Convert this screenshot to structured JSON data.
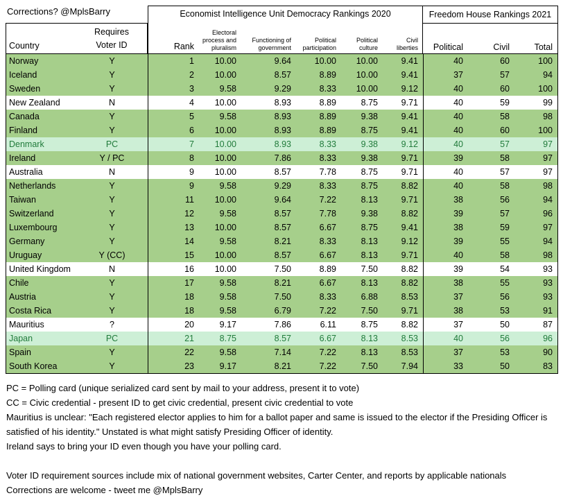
{
  "meta": {
    "corrections_note": "Corrections? @MplsBarry"
  },
  "colors": {
    "row_green": "#A6CF8B",
    "row_highlight_bg": "#CDEFD6",
    "row_highlight_text": "#217B3B",
    "row_white": "#FFFFFF",
    "border": "#000000"
  },
  "header": {
    "country_label": "Country",
    "voter_id_label": "Requires\nVoter ID",
    "eiu_title": "Economist Intelligence Unit Democracy Rankings 2020",
    "fh_title": "Freedom House Rankings 2021",
    "eiu_columns": [
      "Rank",
      "Electoral\nprocess and\npluralism",
      "Functioning of\ngovernment",
      "Political\nparticipation",
      "Political\nculture",
      "Civil\nliberties"
    ],
    "fh_columns": [
      "Political",
      "Civil",
      "Total"
    ]
  },
  "chart_data": {
    "type": "table",
    "title": "Economist Intelligence Unit Democracy Rankings 2020 / Freedom House Rankings 2021",
    "columns": [
      "Country",
      "Requires Voter ID",
      "Rank",
      "Electoral process and pluralism",
      "Functioning of government",
      "Political participation",
      "Political culture",
      "Civil liberties",
      "FH Political",
      "FH Civil",
      "FH Total"
    ],
    "row_style_legend": {
      "green": "requires voter ID",
      "white": "does not require voter ID / unclear",
      "good": "polling card highlighted row (green text on light green)"
    },
    "rows": [
      {
        "country": "Norway",
        "voter_id": "Y",
        "rank": "1",
        "electoral": "10.00",
        "functioning": "9.64",
        "participation": "10.00",
        "culture": "10.00",
        "liberties": "9.41",
        "fh_political": "40",
        "fh_civil": "60",
        "fh_total": "100",
        "style": "green"
      },
      {
        "country": "Iceland",
        "voter_id": "Y",
        "rank": "2",
        "electoral": "10.00",
        "functioning": "8.57",
        "participation": "8.89",
        "culture": "10.00",
        "liberties": "9.41",
        "fh_political": "37",
        "fh_civil": "57",
        "fh_total": "94",
        "style": "green"
      },
      {
        "country": "Sweden",
        "voter_id": "Y",
        "rank": "3",
        "electoral": "9.58",
        "functioning": "9.29",
        "participation": "8.33",
        "culture": "10.00",
        "liberties": "9.12",
        "fh_political": "40",
        "fh_civil": "60",
        "fh_total": "100",
        "style": "green"
      },
      {
        "country": "New Zealand",
        "voter_id": "N",
        "rank": "4",
        "electoral": "10.00",
        "functioning": "8.93",
        "participation": "8.89",
        "culture": "8.75",
        "liberties": "9.71",
        "fh_political": "40",
        "fh_civil": "59",
        "fh_total": "99",
        "style": "white"
      },
      {
        "country": "Canada",
        "voter_id": "Y",
        "rank": "5",
        "electoral": "9.58",
        "functioning": "8.93",
        "participation": "8.89",
        "culture": "9.38",
        "liberties": "9.41",
        "fh_political": "40",
        "fh_civil": "58",
        "fh_total": "98",
        "style": "green"
      },
      {
        "country": "Finland",
        "voter_id": "Y",
        "rank": "6",
        "electoral": "10.00",
        "functioning": "8.93",
        "participation": "8.89",
        "culture": "8.75",
        "liberties": "9.41",
        "fh_political": "40",
        "fh_civil": "60",
        "fh_total": "100",
        "style": "green"
      },
      {
        "country": "Denmark",
        "voter_id": "PC",
        "rank": "7",
        "electoral": "10.00",
        "functioning": "8.93",
        "participation": "8.33",
        "culture": "9.38",
        "liberties": "9.12",
        "fh_political": "40",
        "fh_civil": "57",
        "fh_total": "97",
        "style": "good"
      },
      {
        "country": "Ireland",
        "voter_id": "Y / PC",
        "rank": "8",
        "electoral": "10.00",
        "functioning": "7.86",
        "participation": "8.33",
        "culture": "9.38",
        "liberties": "9.71",
        "fh_political": "39",
        "fh_civil": "58",
        "fh_total": "97",
        "style": "green"
      },
      {
        "country": "Australia",
        "voter_id": "N",
        "rank": "9",
        "electoral": "10.00",
        "functioning": "8.57",
        "participation": "7.78",
        "culture": "8.75",
        "liberties": "9.71",
        "fh_political": "40",
        "fh_civil": "57",
        "fh_total": "97",
        "style": "white"
      },
      {
        "country": "Netherlands",
        "voter_id": "Y",
        "rank": "9",
        "electoral": "9.58",
        "functioning": "9.29",
        "participation": "8.33",
        "culture": "8.75",
        "liberties": "8.82",
        "fh_political": "40",
        "fh_civil": "58",
        "fh_total": "98",
        "style": "green"
      },
      {
        "country": "Taiwan",
        "voter_id": "Y",
        "rank": "11",
        "electoral": "10.00",
        "functioning": "9.64",
        "participation": "7.22",
        "culture": "8.13",
        "liberties": "9.71",
        "fh_political": "38",
        "fh_civil": "56",
        "fh_total": "94",
        "style": "green"
      },
      {
        "country": "Switzerland",
        "voter_id": "Y",
        "rank": "12",
        "electoral": "9.58",
        "functioning": "8.57",
        "participation": "7.78",
        "culture": "9.38",
        "liberties": "8.82",
        "fh_political": "39",
        "fh_civil": "57",
        "fh_total": "96",
        "style": "green"
      },
      {
        "country": "Luxembourg",
        "voter_id": "Y",
        "rank": "13",
        "electoral": "10.00",
        "functioning": "8.57",
        "participation": "6.67",
        "culture": "8.75",
        "liberties": "9.41",
        "fh_political": "38",
        "fh_civil": "59",
        "fh_total": "97",
        "style": "green"
      },
      {
        "country": "Germany",
        "voter_id": "Y",
        "rank": "14",
        "electoral": "9.58",
        "functioning": "8.21",
        "participation": "8.33",
        "culture": "8.13",
        "liberties": "9.12",
        "fh_political": "39",
        "fh_civil": "55",
        "fh_total": "94",
        "style": "green"
      },
      {
        "country": "Uruguay",
        "voter_id": "Y (CC)",
        "rank": "15",
        "electoral": "10.00",
        "functioning": "8.57",
        "participation": "6.67",
        "culture": "8.13",
        "liberties": "9.71",
        "fh_political": "40",
        "fh_civil": "58",
        "fh_total": "98",
        "style": "green"
      },
      {
        "country": "United Kingdom",
        "voter_id": "N",
        "rank": "16",
        "electoral": "10.00",
        "functioning": "7.50",
        "participation": "8.89",
        "culture": "7.50",
        "liberties": "8.82",
        "fh_political": "39",
        "fh_civil": "54",
        "fh_total": "93",
        "style": "white"
      },
      {
        "country": "Chile",
        "voter_id": "Y",
        "rank": "17",
        "electoral": "9.58",
        "functioning": "8.21",
        "participation": "6.67",
        "culture": "8.13",
        "liberties": "8.82",
        "fh_political": "38",
        "fh_civil": "55",
        "fh_total": "93",
        "style": "green"
      },
      {
        "country": "Austria",
        "voter_id": "Y",
        "rank": "18",
        "electoral": "9.58",
        "functioning": "7.50",
        "participation": "8.33",
        "culture": "6.88",
        "liberties": "8.53",
        "fh_political": "37",
        "fh_civil": "56",
        "fh_total": "93",
        "style": "green"
      },
      {
        "country": "Costa Rica",
        "voter_id": "Y",
        "rank": "18",
        "electoral": "9.58",
        "functioning": "6.79",
        "participation": "7.22",
        "culture": "7.50",
        "liberties": "9.71",
        "fh_political": "38",
        "fh_civil": "53",
        "fh_total": "91",
        "style": "green"
      },
      {
        "country": "Mauritius",
        "voter_id": "?",
        "rank": "20",
        "electoral": "9.17",
        "functioning": "7.86",
        "participation": "6.11",
        "culture": "8.75",
        "liberties": "8.82",
        "fh_political": "37",
        "fh_civil": "50",
        "fh_total": "87",
        "style": "white"
      },
      {
        "country": "Japan",
        "voter_id": "PC",
        "rank": "21",
        "electoral": "8.75",
        "functioning": "8.57",
        "participation": "6.67",
        "culture": "8.13",
        "liberties": "8.53",
        "fh_political": "40",
        "fh_civil": "56",
        "fh_total": "96",
        "style": "good"
      },
      {
        "country": "Spain",
        "voter_id": "Y",
        "rank": "22",
        "electoral": "9.58",
        "functioning": "7.14",
        "participation": "7.22",
        "culture": "8.13",
        "liberties": "8.53",
        "fh_political": "37",
        "fh_civil": "53",
        "fh_total": "90",
        "style": "green"
      },
      {
        "country": "South Korea",
        "voter_id": "Y",
        "rank": "23",
        "electoral": "9.17",
        "functioning": "8.21",
        "participation": "7.22",
        "culture": "7.50",
        "liberties": "7.94",
        "fh_political": "33",
        "fh_civil": "50",
        "fh_total": "83",
        "style": "green"
      }
    ]
  },
  "notes": [
    {
      "text": "PC = Polling card (unique serialized card sent by mail to your address, present it to vote)",
      "wrap": false,
      "gap": false
    },
    {
      "text": "CC = Civic credential - present ID to get civic credential, present civic credential to vote",
      "wrap": false,
      "gap": false
    },
    {
      "text": "Mauritius is unclear: \"Each registered elector applies to him for a ballot paper and same is issued to the elector if the Presiding Officer is satisfied of his identity.\" Unstated is what might satisfy Presiding Officer of identity.",
      "wrap": true,
      "gap": false
    },
    {
      "text": "Ireland says to bring your ID even though you have your polling card.",
      "wrap": false,
      "gap": false
    },
    {
      "text": "Voter ID requirement sources include mix of national government websites, Carter Center, and reports by applicable nationals",
      "wrap": false,
      "gap": true
    },
    {
      "text": "Corrections are welcome - tweet me @MplsBarry",
      "wrap": false,
      "gap": false
    }
  ]
}
